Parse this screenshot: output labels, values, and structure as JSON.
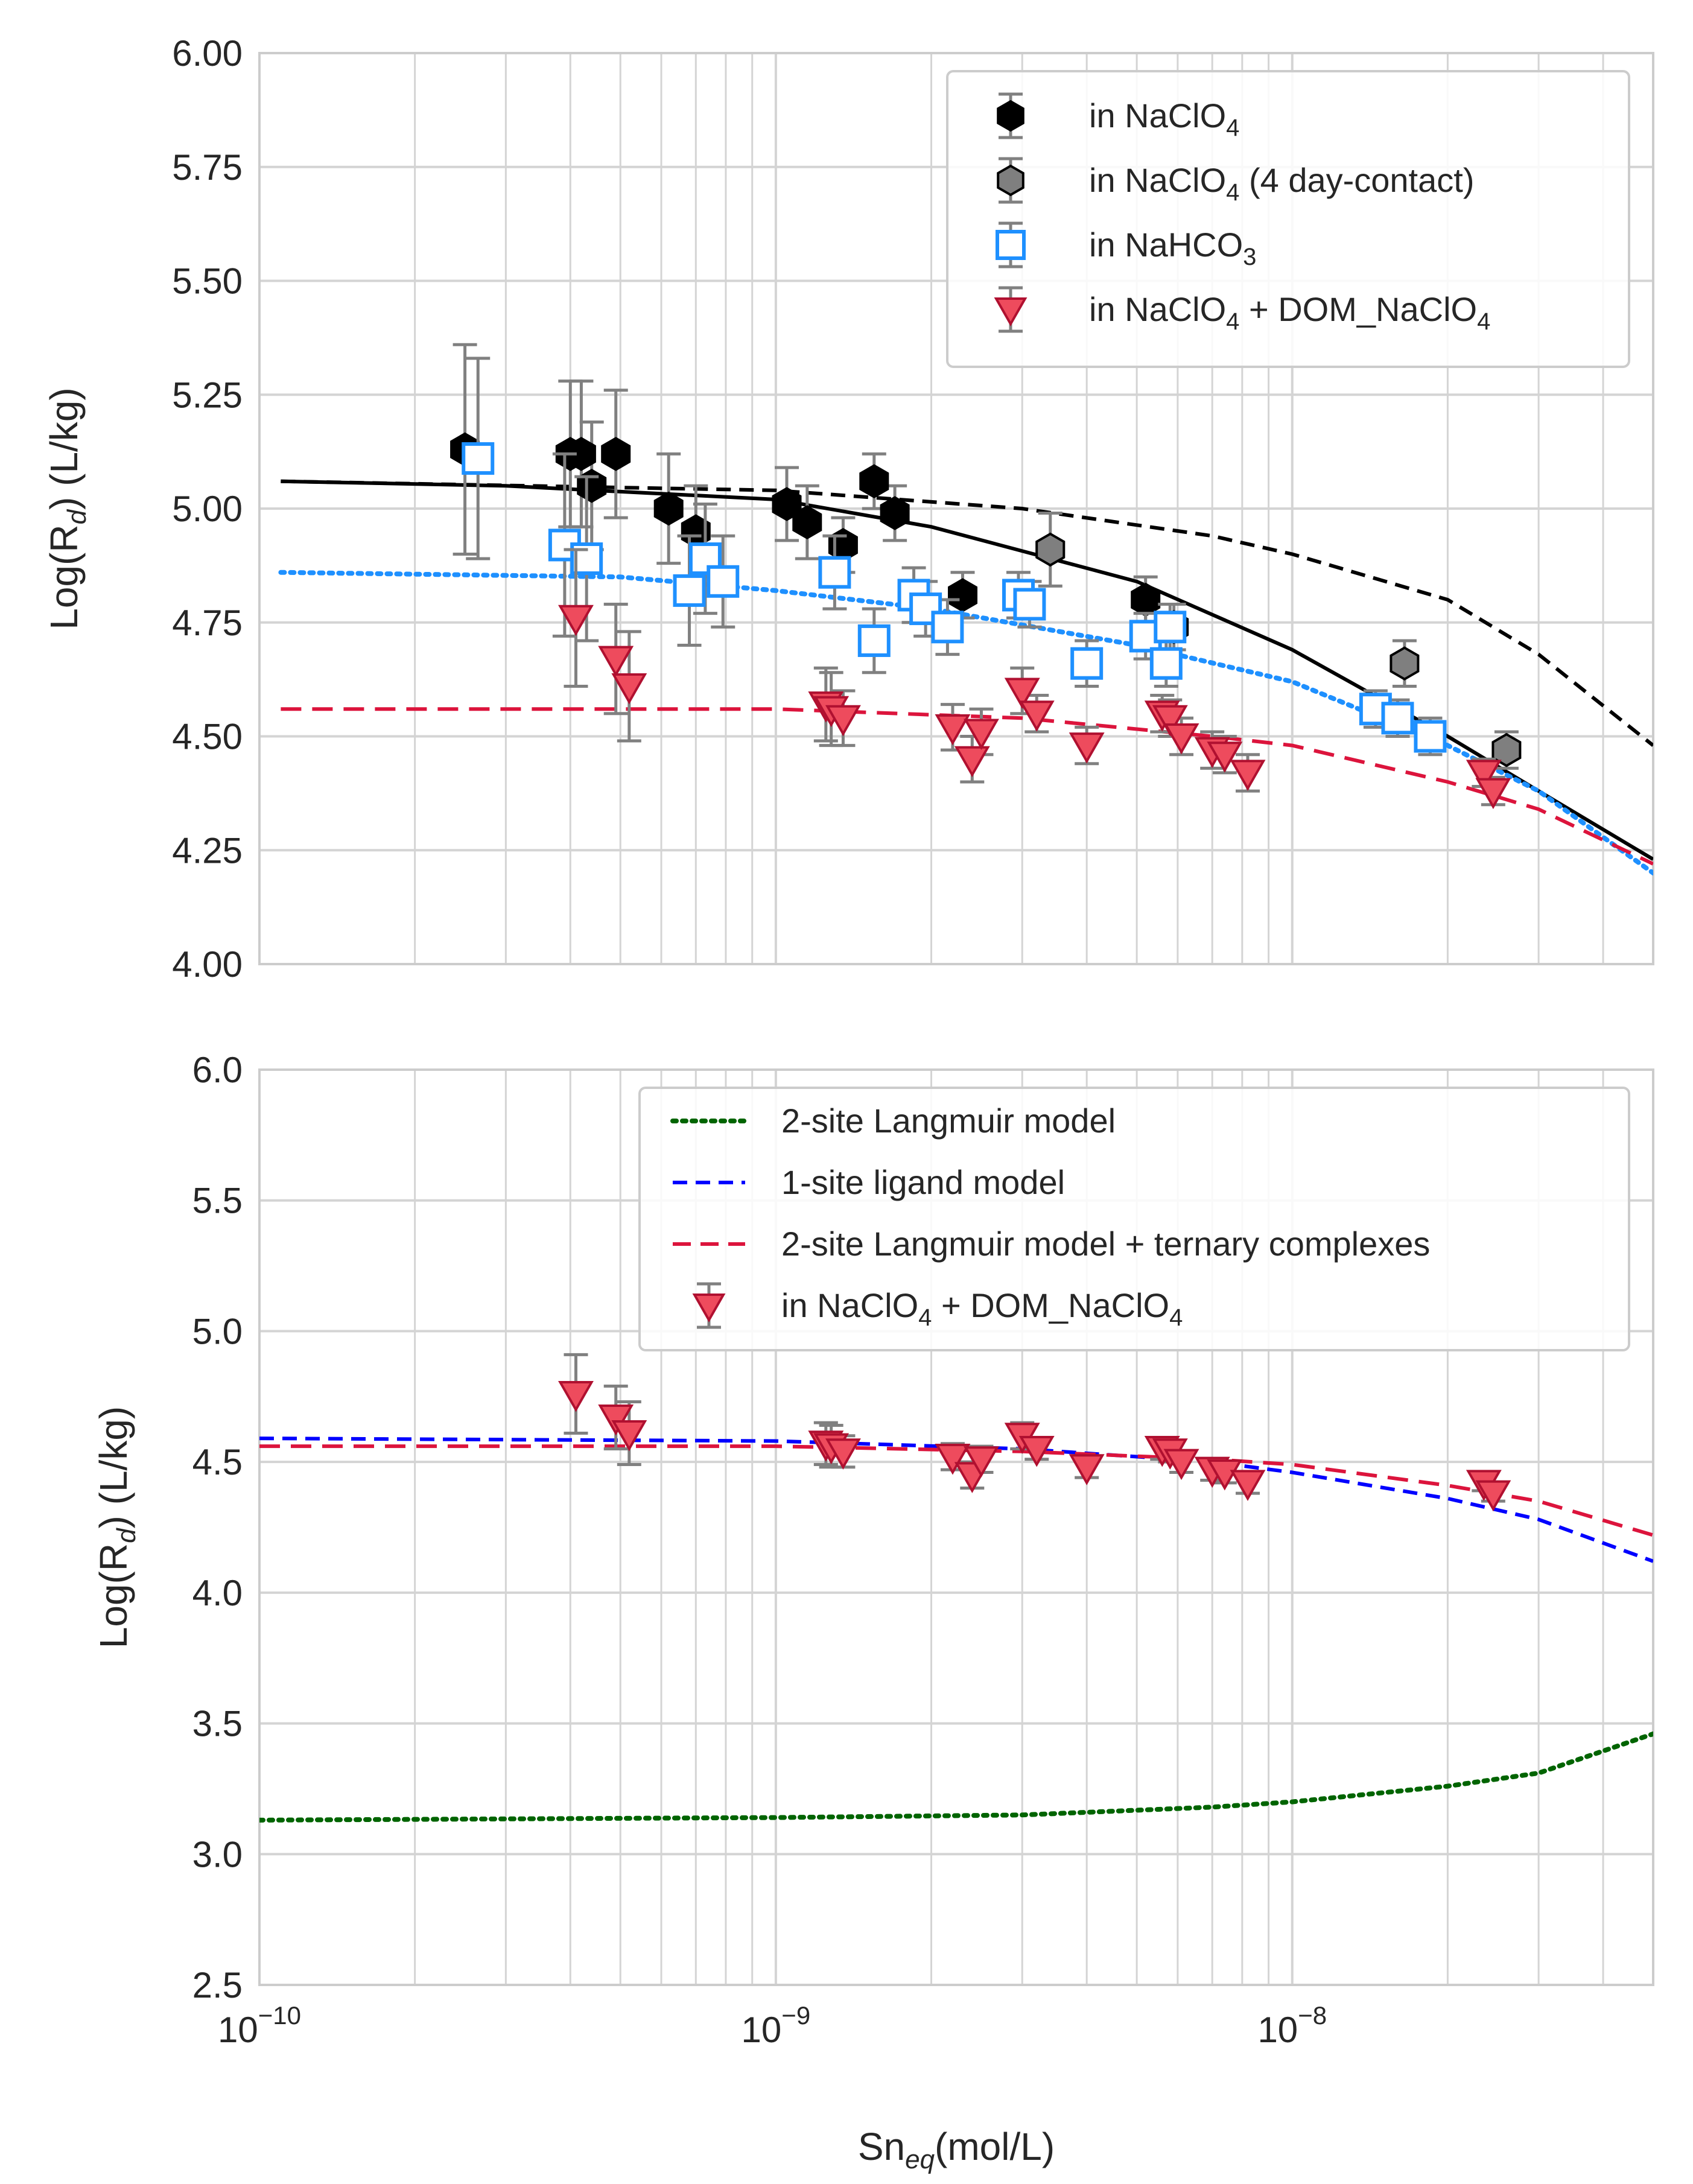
{
  "chart_data": [
    {
      "type": "scatter",
      "panel": "top",
      "xscale": "log",
      "xlim": [
        1e-10,
        5e-08
      ],
      "ylim": [
        4.0,
        6.0
      ],
      "yticks": [
        4.0,
        4.25,
        4.5,
        4.75,
        5.0,
        5.25,
        5.5,
        5.75,
        6.0
      ],
      "ytick_labels": [
        "4.00",
        "4.25",
        "4.50",
        "4.75",
        "5.00",
        "5.25",
        "5.50",
        "5.75",
        "6.00"
      ],
      "ylabel": {
        "main": "Log(R",
        "sub": "d",
        "end": ") (L/kg)"
      },
      "grid": true,
      "legend_position": "top-right",
      "legend": [
        {
          "marker": "hexagon-black",
          "parts": [
            [
              "in NaClO",
              ""
            ],
            [
              "4",
              "sub"
            ]
          ]
        },
        {
          "marker": "hexagon-gray",
          "parts": [
            [
              "in NaClO",
              ""
            ],
            [
              "4",
              "sub"
            ],
            [
              " (4 day-contact)",
              ""
            ]
          ]
        },
        {
          "marker": "square-open-blue",
          "parts": [
            [
              "in NaHCO",
              ""
            ],
            [
              "3",
              "sub"
            ]
          ]
        },
        {
          "marker": "triangle-down-red",
          "parts": [
            [
              "in NaClO",
              ""
            ],
            [
              "4",
              "sub"
            ],
            [
              " + DOM_NaClO",
              ""
            ],
            [
              "4",
              "sub"
            ]
          ]
        }
      ],
      "series": [
        {
          "name": "in NaClO4",
          "marker": "hexagon",
          "color": "#000000",
          "points": [
            {
              "x": 2.5e-10,
              "y": 5.13,
              "err": 0.23
            },
            {
              "x": 4e-10,
              "y": 5.12,
              "err": 0.16
            },
            {
              "x": 4.2e-10,
              "y": 5.12,
              "err": 0.16
            },
            {
              "x": 4.4e-10,
              "y": 5.05,
              "err": 0.14
            },
            {
              "x": 4.9e-10,
              "y": 5.12,
              "err": 0.14
            },
            {
              "x": 6.2e-10,
              "y": 5.0,
              "err": 0.12
            },
            {
              "x": 7e-10,
              "y": 4.95,
              "err": 0.1
            },
            {
              "x": 1.05e-09,
              "y": 5.01,
              "err": 0.08
            },
            {
              "x": 1.15e-09,
              "y": 4.97,
              "err": 0.08
            },
            {
              "x": 1.35e-09,
              "y": 4.92,
              "err": 0.06
            },
            {
              "x": 1.55e-09,
              "y": 5.06,
              "err": 0.06
            },
            {
              "x": 1.7e-09,
              "y": 4.99,
              "err": 0.06
            },
            {
              "x": 2.3e-09,
              "y": 4.81,
              "err": 0.05
            },
            {
              "x": 5.2e-09,
              "y": 4.8,
              "err": 0.05
            },
            {
              "x": 5.9e-09,
              "y": 4.74,
              "err": 0.05
            }
          ]
        },
        {
          "name": "in NaClO4 (4 day-contact)",
          "marker": "hexagon",
          "color": "#7f7f7f",
          "points": [
            {
              "x": 3.4e-09,
              "y": 4.91,
              "err": 0.08
            },
            {
              "x": 1.65e-08,
              "y": 4.66,
              "err": 0.05
            },
            {
              "x": 2.6e-08,
              "y": 4.47,
              "err": 0.04
            }
          ]
        },
        {
          "name": "in NaHCO3",
          "marker": "square-open",
          "color": "#1e90ff",
          "points": [
            {
              "x": 2.65e-10,
              "y": 5.11,
              "err": 0.22
            },
            {
              "x": 3.9e-10,
              "y": 4.92,
              "err": 0.2
            },
            {
              "x": 4.3e-10,
              "y": 4.89,
              "err": 0.18
            },
            {
              "x": 6.8e-10,
              "y": 4.82,
              "err": 0.12
            },
            {
              "x": 7.3e-10,
              "y": 4.89,
              "err": 0.12
            },
            {
              "x": 7.9e-10,
              "y": 4.84,
              "err": 0.1
            },
            {
              "x": 1.3e-09,
              "y": 4.86,
              "err": 0.08
            },
            {
              "x": 1.55e-09,
              "y": 4.71,
              "err": 0.07
            },
            {
              "x": 1.85e-09,
              "y": 4.81,
              "err": 0.06
            },
            {
              "x": 1.95e-09,
              "y": 4.78,
              "err": 0.06
            },
            {
              "x": 2.15e-09,
              "y": 4.74,
              "err": 0.06
            },
            {
              "x": 2.95e-09,
              "y": 4.81,
              "err": 0.05
            },
            {
              "x": 3.1e-09,
              "y": 4.79,
              "err": 0.05
            },
            {
              "x": 4e-09,
              "y": 4.66,
              "err": 0.05
            },
            {
              "x": 5.2e-09,
              "y": 4.72,
              "err": 0.05
            },
            {
              "x": 5.7e-09,
              "y": 4.66,
              "err": 0.05
            },
            {
              "x": 5.8e-09,
              "y": 4.74,
              "err": 0.05
            },
            {
              "x": 1.45e-08,
              "y": 4.56,
              "err": 0.04
            },
            {
              "x": 1.6e-08,
              "y": 4.54,
              "err": 0.04
            },
            {
              "x": 1.85e-08,
              "y": 4.5,
              "err": 0.04
            }
          ]
        },
        {
          "name": "in NaClO4 + DOM_NaClO4",
          "marker": "triangle-down",
          "color": "#e8334a",
          "points": [
            {
              "x": 4.1e-10,
              "y": 4.76,
              "err": 0.15
            },
            {
              "x": 4.9e-10,
              "y": 4.67,
              "err": 0.12
            },
            {
              "x": 5.2e-10,
              "y": 4.61,
              "err": 0.12
            },
            {
              "x": 1.25e-09,
              "y": 4.57,
              "err": 0.08
            },
            {
              "x": 1.28e-09,
              "y": 4.56,
              "err": 0.08
            },
            {
              "x": 1.35e-09,
              "y": 4.54,
              "err": 0.06
            },
            {
              "x": 2.2e-09,
              "y": 4.52,
              "err": 0.05
            },
            {
              "x": 2.4e-09,
              "y": 4.45,
              "err": 0.05
            },
            {
              "x": 2.5e-09,
              "y": 4.51,
              "err": 0.05
            },
            {
              "x": 3e-09,
              "y": 4.6,
              "err": 0.05
            },
            {
              "x": 3.2e-09,
              "y": 4.55,
              "err": 0.04
            },
            {
              "x": 4e-09,
              "y": 4.48,
              "err": 0.04
            },
            {
              "x": 5.6e-09,
              "y": 4.55,
              "err": 0.04
            },
            {
              "x": 5.8e-09,
              "y": 4.54,
              "err": 0.04
            },
            {
              "x": 6.1e-09,
              "y": 4.5,
              "err": 0.04
            },
            {
              "x": 7e-09,
              "y": 4.47,
              "err": 0.04
            },
            {
              "x": 7.4e-09,
              "y": 4.46,
              "err": 0.04
            },
            {
              "x": 8.2e-09,
              "y": 4.42,
              "err": 0.04
            },
            {
              "x": 2.35e-08,
              "y": 4.42,
              "err": 0.03
            },
            {
              "x": 2.45e-08,
              "y": 4.38,
              "err": 0.03
            }
          ]
        }
      ],
      "fit_lines": [
        {
          "name": "NaClO4 fit (solid)",
          "style": "solid",
          "color": "#000000",
          "points": [
            [
              1.1e-10,
              5.06
            ],
            [
              3e-10,
              5.05
            ],
            [
              1e-09,
              5.02
            ],
            [
              2e-09,
              4.96
            ],
            [
              5e-09,
              4.84
            ],
            [
              1e-08,
              4.69
            ],
            [
              2e-08,
              4.5
            ],
            [
              3e-08,
              4.38
            ],
            [
              5e-08,
              4.23
            ]
          ]
        },
        {
          "name": "NaClO4 fit (dashed)",
          "style": "dashed",
          "color": "#000000",
          "points": [
            [
              1.1e-10,
              5.06
            ],
            [
              1e-09,
              5.04
            ],
            [
              3e-09,
              5.0
            ],
            [
              7e-09,
              4.94
            ],
            [
              1e-08,
              4.9
            ],
            [
              2e-08,
              4.8
            ],
            [
              3e-08,
              4.68
            ],
            [
              5e-08,
              4.48
            ]
          ]
        },
        {
          "name": "NaHCO3 fit (dotted)",
          "style": "dotted",
          "color": "#1e90ff",
          "points": [
            [
              1.1e-10,
              4.86
            ],
            [
              5e-10,
              4.85
            ],
            [
              1e-09,
              4.82
            ],
            [
              2e-09,
              4.78
            ],
            [
              5e-09,
              4.7
            ],
            [
              1e-08,
              4.62
            ],
            [
              2e-08,
              4.48
            ],
            [
              3e-08,
              4.38
            ],
            [
              5e-08,
              4.2
            ]
          ]
        },
        {
          "name": "DOM fit (long dash)",
          "style": "long-dash",
          "color": "#dc143c",
          "points": [
            [
              1.1e-10,
              4.56
            ],
            [
              1e-09,
              4.56
            ],
            [
              3e-09,
              4.54
            ],
            [
              7e-09,
              4.5
            ],
            [
              1e-08,
              4.48
            ],
            [
              2e-08,
              4.4
            ],
            [
              3e-08,
              4.34
            ],
            [
              5e-08,
              4.22
            ]
          ]
        }
      ]
    },
    {
      "type": "scatter",
      "panel": "bottom",
      "xscale": "log",
      "xlim": [
        1e-10,
        5e-08
      ],
      "xticks": [
        1e-10,
        1e-09,
        1e-08
      ],
      "xtick_labels": [
        {
          "base": "10",
          "exp": "−10"
        },
        {
          "base": "10",
          "exp": "−9"
        },
        {
          "base": "10",
          "exp": "−8"
        }
      ],
      "ylim": [
        2.5,
        6.0
      ],
      "yticks": [
        2.5,
        3.0,
        3.5,
        4.0,
        4.5,
        5.0,
        5.5,
        6.0
      ],
      "ytick_labels": [
        "2.5",
        "3.0",
        "3.5",
        "4.0",
        "4.5",
        "5.0",
        "5.5",
        "6.0"
      ],
      "xlabel": {
        "main": "Sn",
        "sub": "eq",
        "end": "(mol/L)"
      },
      "ylabel": {
        "main": "Log(R",
        "sub": "d",
        "end": ") (L/kg)"
      },
      "grid": true,
      "legend_position": "top-right",
      "legend": [
        {
          "marker": "line-dotted-green",
          "parts": [
            [
              "2-site Langmuir model",
              ""
            ]
          ]
        },
        {
          "marker": "line-dashed-blue",
          "parts": [
            [
              "1-site ligand model",
              ""
            ]
          ]
        },
        {
          "marker": "line-dashed-red",
          "parts": [
            [
              "2-site Langmuir model + ternary complexes",
              ""
            ]
          ]
        },
        {
          "marker": "triangle-down-red",
          "parts": [
            [
              "in NaClO",
              ""
            ],
            [
              "4",
              "sub"
            ],
            [
              " + DOM_NaClO",
              ""
            ],
            [
              "4",
              "sub"
            ]
          ]
        }
      ],
      "series": [
        {
          "name": "in NaClO4 + DOM_NaClO4",
          "marker": "triangle-down",
          "color": "#e8334a",
          "points": [
            {
              "x": 4.1e-10,
              "y": 4.76,
              "err": 0.15
            },
            {
              "x": 4.9e-10,
              "y": 4.67,
              "err": 0.12
            },
            {
              "x": 5.2e-10,
              "y": 4.61,
              "err": 0.12
            },
            {
              "x": 1.25e-09,
              "y": 4.57,
              "err": 0.08
            },
            {
              "x": 1.28e-09,
              "y": 4.56,
              "err": 0.08
            },
            {
              "x": 1.35e-09,
              "y": 4.54,
              "err": 0.06
            },
            {
              "x": 2.2e-09,
              "y": 4.52,
              "err": 0.05
            },
            {
              "x": 2.4e-09,
              "y": 4.45,
              "err": 0.05
            },
            {
              "x": 2.5e-09,
              "y": 4.51,
              "err": 0.05
            },
            {
              "x": 3e-09,
              "y": 4.6,
              "err": 0.05
            },
            {
              "x": 3.2e-09,
              "y": 4.55,
              "err": 0.04
            },
            {
              "x": 4e-09,
              "y": 4.48,
              "err": 0.04
            },
            {
              "x": 5.6e-09,
              "y": 4.55,
              "err": 0.04
            },
            {
              "x": 5.8e-09,
              "y": 4.54,
              "err": 0.04
            },
            {
              "x": 6.1e-09,
              "y": 4.5,
              "err": 0.04
            },
            {
              "x": 7e-09,
              "y": 4.47,
              "err": 0.04
            },
            {
              "x": 7.4e-09,
              "y": 4.46,
              "err": 0.04
            },
            {
              "x": 8.2e-09,
              "y": 4.42,
              "err": 0.04
            },
            {
              "x": 2.35e-08,
              "y": 4.42,
              "err": 0.03
            },
            {
              "x": 2.45e-08,
              "y": 4.38,
              "err": 0.03
            }
          ]
        }
      ],
      "fit_lines": [
        {
          "name": "2-site Langmuir model",
          "style": "dotted",
          "color": "#006400",
          "points": [
            [
              1e-10,
              3.13
            ],
            [
              1e-09,
              3.14
            ],
            [
              3e-09,
              3.15
            ],
            [
              7e-09,
              3.18
            ],
            [
              1e-08,
              3.2
            ],
            [
              2e-08,
              3.26
            ],
            [
              3e-08,
              3.31
            ],
            [
              5e-08,
              3.46
            ]
          ]
        },
        {
          "name": "1-site ligand model",
          "style": "dashed",
          "color": "#0000ff",
          "points": [
            [
              1e-10,
              4.59
            ],
            [
              1e-09,
              4.58
            ],
            [
              3e-09,
              4.55
            ],
            [
              7e-09,
              4.5
            ],
            [
              1e-08,
              4.46
            ],
            [
              2e-08,
              4.36
            ],
            [
              3e-08,
              4.28
            ],
            [
              5e-08,
              4.12
            ]
          ]
        },
        {
          "name": "2-site Langmuir model + ternary complexes",
          "style": "long-dash",
          "color": "#dc143c",
          "points": [
            [
              1e-10,
              4.56
            ],
            [
              1e-09,
              4.56
            ],
            [
              3e-09,
              4.54
            ],
            [
              7e-09,
              4.51
            ],
            [
              1e-08,
              4.49
            ],
            [
              2e-08,
              4.41
            ],
            [
              3e-08,
              4.35
            ],
            [
              5e-08,
              4.22
            ]
          ]
        }
      ]
    }
  ]
}
